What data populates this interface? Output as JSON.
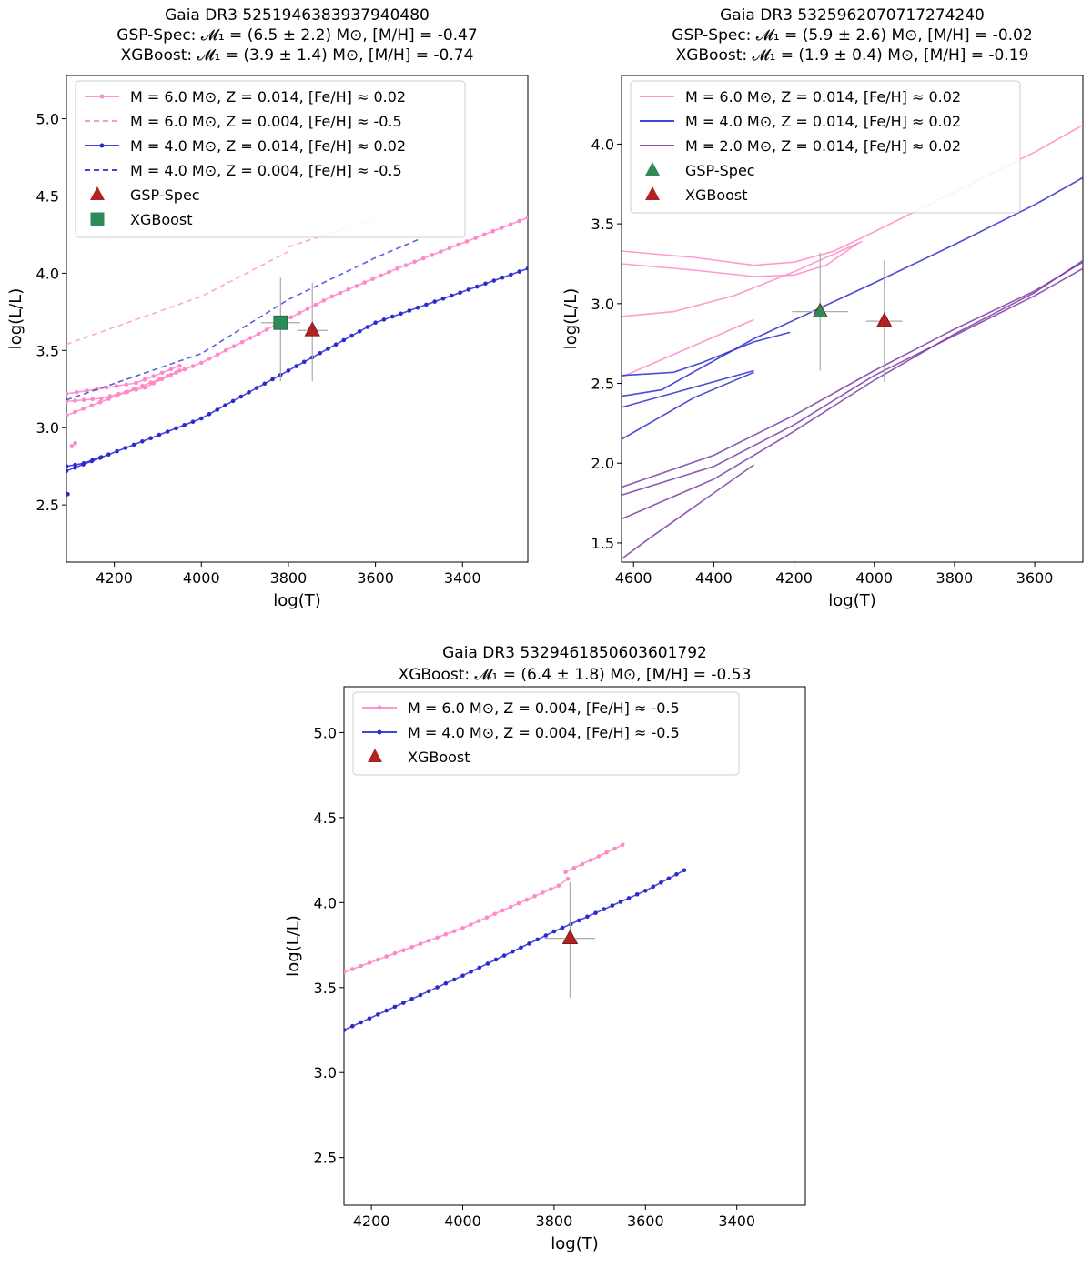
{
  "chart_data": [
    {
      "type": "line",
      "title_lines": [
        "Gaia DR3 5251946383937940480",
        "GSP-Spec: 𝓜₁ = (6.5 ± 2.2) M⊙, [M/H] = -0.47",
        "XGBoost: 𝓜₁ = (3.9 ± 1.4) M⊙, [M/H] = -0.74"
      ],
      "xlabel": "log(Teff)",
      "ylabel": "log(L/L⊙)",
      "xlim": [
        4310,
        3250
      ],
      "ylim": [
        2.13,
        5.28
      ],
      "xticks": [
        4200,
        4000,
        3800,
        3600,
        3400
      ],
      "yticks": [
        2.5,
        3.0,
        3.5,
        4.0,
        4.5,
        5.0
      ],
      "legend_position": "top-left",
      "series": [
        {
          "name": "Mini = 6.0 M⊙, Z = 0.014, [Fe/H] ≈ 0.02",
          "color": "#ff88c8",
          "style": "solid",
          "markers": true,
          "segments": [
            [
              [
                4310,
                3.08
              ],
              [
                4000,
                3.42
              ],
              [
                3700,
                3.85
              ],
              [
                3550,
                4.03
              ],
              [
                3250,
                4.36
              ]
            ],
            [
              [
                4310,
                3.17
              ],
              [
                4230,
                3.19
              ],
              [
                4130,
                3.26
              ],
              [
                4050,
                3.37
              ]
            ],
            [
              [
                4310,
                3.22
              ],
              [
                4240,
                3.25
              ],
              [
                4150,
                3.29
              ],
              [
                4050,
                3.4
              ]
            ],
            [
              [
                4298,
                2.88
              ],
              [
                4290,
                2.9
              ]
            ]
          ]
        },
        {
          "name": "Mini = 6.0 M⊙, Z = 0.004, [Fe/H] ≈ -0.5",
          "color": "#ff88c8",
          "style": "dashed",
          "markers": false,
          "segments": [
            [
              [
                4310,
                3.54
              ],
              [
                4000,
                3.85
              ],
              [
                3800,
                4.14
              ]
            ],
            [
              [
                3800,
                4.17
              ],
              [
                3680,
                4.28
              ],
              [
                3600,
                4.35
              ]
            ]
          ]
        },
        {
          "name": "Mini = 4.0 M⊙, Z = 0.014, [Fe/H] ≈ 0.02",
          "color": "#2a2acf",
          "style": "solid",
          "markers": true,
          "segments": [
            [
              [
                4310,
                2.72
              ],
              [
                4000,
                3.06
              ],
              [
                3800,
                3.37
              ],
              [
                3600,
                3.68
              ],
              [
                3250,
                4.03
              ]
            ],
            [
              [
                4310,
                2.75
              ],
              [
                4270,
                2.77
              ],
              [
                4230,
                2.81
              ]
            ],
            [
              [
                4307,
                2.57
              ]
            ]
          ]
        },
        {
          "name": "Mini = 4.0 M⊙, Z = 0.004, [Fe/H] ≈ -0.5",
          "color": "#2a2acf",
          "style": "dashed",
          "markers": false,
          "segments": [
            [
              [
                4310,
                3.18
              ],
              [
                4000,
                3.48
              ],
              [
                3800,
                3.83
              ],
              [
                3600,
                4.1
              ],
              [
                3500,
                4.22
              ]
            ]
          ]
        }
      ],
      "points": [
        {
          "name": "GSP-Spec",
          "marker": "triangle",
          "color": "#b22222",
          "x": 3745,
          "y": 3.63,
          "xerr": 35,
          "yerr_low": 0.33,
          "yerr_high": 0.31
        },
        {
          "name": "XGBoost",
          "marker": "square",
          "color": "#2e8b57",
          "x": 3818,
          "y": 3.68,
          "xerr": 45,
          "yerr_low": 0.38,
          "yerr_high": 0.29
        }
      ]
    },
    {
      "type": "line",
      "title_lines": [
        "Gaia DR3 5325962070717274240",
        "GSP-Spec: 𝓜₁ = (5.9 ± 2.6) M⊙, [M/H] = -0.02",
        "XGBoost: 𝓜₁ = (1.9 ± 0.4) M⊙, [M/H] = -0.19"
      ],
      "xlabel": "log(Teff)",
      "ylabel": "log(L/L⊙)",
      "xlim": [
        4630,
        3480
      ],
      "ylim": [
        1.38,
        4.43
      ],
      "xticks": [
        4600,
        4400,
        4200,
        4000,
        3800,
        3600
      ],
      "yticks": [
        1.5,
        2.0,
        2.5,
        3.0,
        3.5,
        4.0
      ],
      "legend_position": "top-left",
      "series": [
        {
          "name": "Mini = 6.0 M⊙, Z = 0.014, [Fe/H] ≈ 0.02",
          "color": "#ff88c8",
          "style": "solid",
          "markers": false,
          "segments": [
            [
              [
                4630,
                2.54
              ],
              [
                4300,
                2.9
              ]
            ],
            [
              [
                4630,
                3.33
              ],
              [
                4450,
                3.29
              ],
              [
                4300,
                3.24
              ],
              [
                4200,
                3.26
              ],
              [
                4100,
                3.33
              ],
              [
                4000,
                3.45
              ],
              [
                3800,
                3.7
              ],
              [
                3600,
                3.95
              ],
              [
                3480,
                4.12
              ]
            ],
            [
              [
                4630,
                3.25
              ],
              [
                4450,
                3.21
              ],
              [
                4300,
                3.17
              ],
              [
                4200,
                3.18
              ],
              [
                4120,
                3.24
              ],
              [
                4040,
                3.38
              ]
            ],
            [
              [
                4630,
                2.92
              ],
              [
                4500,
                2.95
              ],
              [
                4350,
                3.05
              ],
              [
                4200,
                3.2
              ],
              [
                4030,
                3.39
              ]
            ]
          ]
        },
        {
          "name": "Mini = 4.0 M⊙, Z = 0.014, [Fe/H] ≈ 0.02",
          "color": "#2a2acf",
          "style": "solid",
          "markers": false,
          "segments": [
            [
              [
                4630,
                2.55
              ],
              [
                4500,
                2.57
              ],
              [
                4430,
                2.63
              ],
              [
                4300,
                2.76
              ],
              [
                4210,
                2.82
              ]
            ],
            [
              [
                4630,
                2.42
              ],
              [
                4530,
                2.46
              ],
              [
                4430,
                2.6
              ],
              [
                4300,
                2.78
              ],
              [
                4000,
                3.13
              ],
              [
                3800,
                3.37
              ],
              [
                3600,
                3.62
              ],
              [
                3480,
                3.79
              ]
            ],
            [
              [
                4630,
                2.35
              ],
              [
                4300,
                2.58
              ]
            ],
            [
              [
                4630,
                2.15
              ],
              [
                4450,
                2.41
              ],
              [
                4300,
                2.57
              ]
            ]
          ]
        },
        {
          "name": "Mini = 2.0 M⊙, Z = 0.014, [Fe/H] ≈ 0.02",
          "color": "#7a3ca6",
          "style": "solid",
          "markers": false,
          "segments": [
            [
              [
                4630,
                1.85
              ],
              [
                4400,
                2.05
              ],
              [
                4200,
                2.3
              ],
              [
                4000,
                2.58
              ],
              [
                3800,
                2.84
              ],
              [
                3600,
                3.08
              ],
              [
                3480,
                3.26
              ]
            ],
            [
              [
                4630,
                1.8
              ],
              [
                4400,
                1.98
              ],
              [
                4200,
                2.24
              ],
              [
                4000,
                2.55
              ],
              [
                3800,
                2.8
              ],
              [
                3600,
                3.05
              ],
              [
                3480,
                3.22
              ]
            ],
            [
              [
                4630,
                1.65
              ],
              [
                4400,
                1.9
              ],
              [
                4200,
                2.2
              ],
              [
                4000,
                2.52
              ],
              [
                3800,
                2.81
              ],
              [
                3600,
                3.07
              ],
              [
                3480,
                3.27
              ]
            ],
            [
              [
                4630,
                1.4
              ],
              [
                4560,
                1.53
              ],
              [
                4300,
                1.99
              ]
            ]
          ]
        }
      ],
      "points": [
        {
          "name": "GSP-Spec",
          "marker": "triangle",
          "color": "#2e8b57",
          "x": 4135,
          "y": 2.95,
          "xerr": 70,
          "yerr_low": 0.37,
          "yerr_high": 0.37
        },
        {
          "name": "XGBoost",
          "marker": "triangle",
          "color": "#b22222",
          "x": 3975,
          "y": 2.89,
          "xerr": 45,
          "yerr_low": 0.38,
          "yerr_high": 0.38
        }
      ]
    },
    {
      "type": "line",
      "title_lines": [
        "Gaia DR3 5329461850603601792",
        "XGBoost:   𝓜₁ = (6.4 ± 1.8) M⊙, [M/H] = -0.53"
      ],
      "xlabel": "log(Teff)",
      "ylabel": "log(L/L⊙)",
      "xlim": [
        4260,
        3250
      ],
      "ylim": [
        2.22,
        5.27
      ],
      "xticks": [
        4200,
        4000,
        3800,
        3600,
        3400
      ],
      "yticks": [
        2.5,
        3.0,
        3.5,
        4.0,
        4.5,
        5.0
      ],
      "legend_position": "top-left",
      "series": [
        {
          "name": "Mini = 6.0 M⊙, Z = 0.004, [Fe/H] ≈ -0.5",
          "color": "#ff88c8",
          "style": "solid",
          "markers": true,
          "segments": [
            [
              [
                4260,
                3.59
              ],
              [
                4000,
                3.85
              ],
              [
                3790,
                4.1
              ],
              [
                3770,
                4.14
              ]
            ],
            [
              [
                3775,
                4.18
              ],
              [
                3720,
                4.25
              ],
              [
                3650,
                4.34
              ]
            ]
          ]
        },
        {
          "name": "Mini = 4.0 M⊙, Z = 0.004, [Fe/H] ≈ -0.5",
          "color": "#2a2acf",
          "style": "solid",
          "markers": true,
          "segments": [
            [
              [
                4260,
                3.25
              ],
              [
                4000,
                3.57
              ],
              [
                3800,
                3.83
              ],
              [
                3600,
                4.07
              ],
              [
                3515,
                4.19
              ]
            ]
          ]
        }
      ],
      "points": [
        {
          "name": "XGBoost",
          "marker": "triangle",
          "color": "#b22222",
          "x": 3765,
          "y": 3.79,
          "xerr": 55,
          "yerr_low": 0.35,
          "yerr_high": 0.33
        }
      ]
    }
  ]
}
